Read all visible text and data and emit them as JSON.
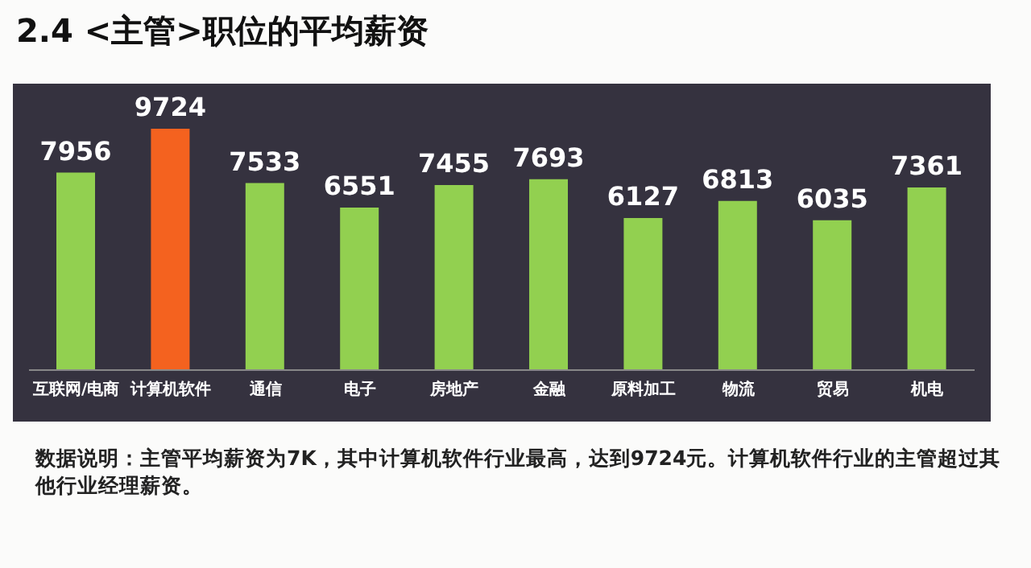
{
  "chart_data": {
    "type": "bar",
    "title": "2.4  <主管>职位的平均薪资",
    "categories": [
      "互联网/电商",
      "计算机软件",
      "通信",
      "电子",
      "房地产",
      "金融",
      "原料加工",
      "物流",
      "贸易",
      "机电"
    ],
    "values": [
      7956,
      9724,
      7533,
      6551,
      7455,
      7693,
      6127,
      6813,
      6035,
      7361
    ],
    "colors": [
      "#92d050",
      "#f4621f",
      "#92d050",
      "#92d050",
      "#92d050",
      "#92d050",
      "#92d050",
      "#92d050",
      "#92d050",
      "#92d050"
    ],
    "data_labels": true,
    "grid": false,
    "legend": false,
    "annotations": [
      "数据说明：主管平均薪资为7K，其中计算机软件行业最高，达到9724元。计算机软件行业的主管超过其他行业经理薪资。"
    ]
  }
}
